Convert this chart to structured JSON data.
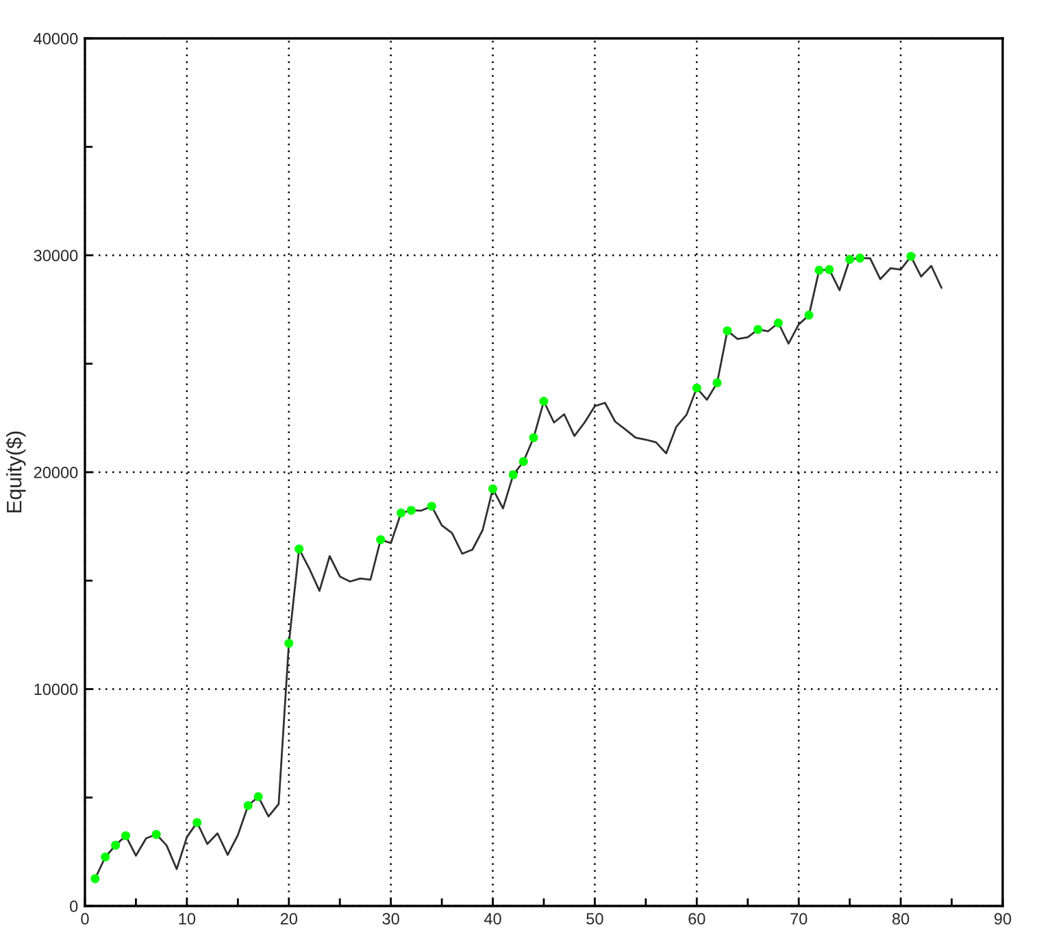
{
  "chart_data": {
    "type": "line",
    "ylabel": "Equity($)",
    "xlim": [
      0,
      90
    ],
    "xticks": [
      0,
      {
        "value": 5,
        "label": null
      },
      10,
      {
        "value": 15,
        "label": null
      },
      20,
      {
        "value": 25,
        "label": null
      },
      30,
      {
        "value": 35,
        "label": null
      },
      40,
      {
        "value": 45,
        "label": null
      },
      50,
      {
        "value": 55,
        "label": null
      },
      60,
      {
        "value": 65,
        "label": null
      },
      70,
      {
        "value": 75,
        "label": null
      },
      80,
      {
        "value": 85,
        "label": null
      },
      90
    ],
    "ylim": [
      0,
      40000
    ],
    "yticks": [
      0,
      {
        "value": 5000,
        "label": null
      },
      10000,
      {
        "value": 15000,
        "label": null
      },
      20000,
      {
        "value": 25000,
        "label": null
      },
      30000,
      {
        "value": 35000,
        "label": null
      },
      40000
    ],
    "grid": true,
    "series": [
      {
        "color": "#303030",
        "line_style": "solid",
        "x": [
          1,
          2,
          3,
          4,
          5,
          6,
          7,
          8,
          9,
          10,
          11,
          12,
          13,
          14,
          15,
          16,
          17,
          18,
          19,
          20,
          21,
          22,
          23,
          24,
          25,
          26,
          27,
          28,
          29,
          30,
          31,
          32,
          33,
          34,
          35,
          36,
          37,
          38,
          39,
          40,
          41,
          42,
          43,
          44,
          45,
          46,
          47,
          48,
          49,
          50,
          51,
          52,
          53,
          54,
          55,
          56,
          57,
          58,
          59,
          60,
          61,
          62,
          63,
          64,
          65,
          66,
          67,
          68,
          69,
          70,
          71,
          72,
          73,
          74,
          75,
          76,
          77,
          78,
          79,
          80,
          81,
          82,
          83,
          84
        ],
        "values": [
          1260,
          2260,
          2800,
          3240,
          2320,
          3120,
          3300,
          2800,
          1700,
          3180,
          3850,
          2860,
          3350,
          2360,
          3270,
          4630,
          5040,
          4130,
          4700,
          12110,
          16460,
          15560,
          14530,
          16130,
          15190,
          14960,
          15100,
          15040,
          16890,
          16730,
          18120,
          18240,
          18230,
          18430,
          17550,
          17190,
          16240,
          16430,
          17330,
          19230,
          18330,
          19880,
          20490,
          21590,
          23270,
          22290,
          22670,
          21670,
          22290,
          23040,
          23200,
          22330,
          21970,
          21590,
          21500,
          21380,
          20870,
          22100,
          22650,
          23880,
          23340,
          24120,
          26520,
          26140,
          26220,
          26580,
          26500,
          26880,
          25930,
          26810,
          27240,
          29310,
          29340,
          28390,
          29810,
          29870,
          29860,
          28900,
          29400,
          29340,
          29950,
          29020,
          29510,
          28500
        ]
      },
      {
        "type": "scatter",
        "color": "#00ff00",
        "marker": "circle",
        "x": [
          1,
          2,
          3,
          4,
          7,
          11,
          16,
          17,
          20,
          21,
          29,
          31,
          32,
          34,
          40,
          42,
          43,
          44,
          45,
          60,
          62,
          63,
          66,
          68,
          71,
          72,
          73,
          75,
          76,
          81
        ],
        "values": [
          1260,
          2260,
          2800,
          3240,
          3300,
          3850,
          4630,
          5040,
          12110,
          16460,
          16890,
          18120,
          18240,
          18430,
          19230,
          19880,
          20490,
          21590,
          23270,
          23880,
          24120,
          26520,
          26580,
          26880,
          27240,
          29310,
          29340,
          29810,
          29870,
          29950
        ]
      }
    ]
  }
}
